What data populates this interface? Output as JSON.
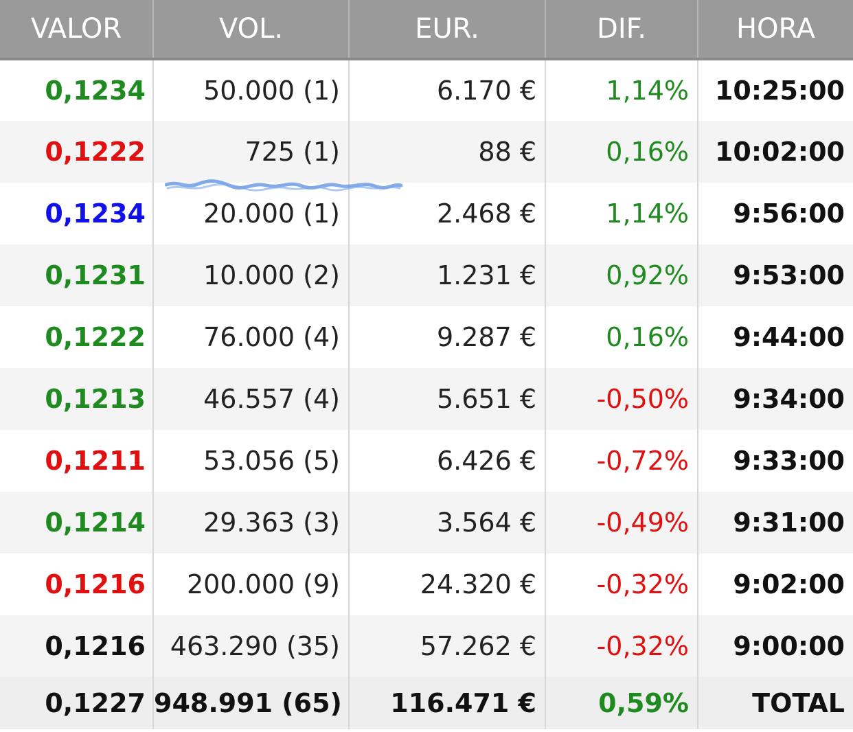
{
  "header": {
    "columns": [
      "VALOR",
      "VOL.",
      "EUR.",
      "DIF.",
      "HORA"
    ]
  },
  "rows": [
    {
      "valor": "0,1234",
      "valor_color": "green",
      "vol": "50.000 (1)",
      "eur": "6.170 €",
      "dif": "1,14%",
      "dif_color": "green",
      "hora": "10:25:00"
    },
    {
      "valor": "0,1222",
      "valor_color": "red",
      "vol": "725 (1)",
      "eur": "88 €",
      "dif": "0,16%",
      "dif_color": "green",
      "hora": "10:02:00"
    },
    {
      "valor": "0,1234",
      "valor_color": "blue",
      "vol": "20.000 (1)",
      "eur": "2.468 €",
      "dif": "1,14%",
      "dif_color": "green",
      "hora": "9:56:00"
    },
    {
      "valor": "0,1231",
      "valor_color": "green",
      "vol": "10.000 (2)",
      "eur": "1.231 €",
      "dif": "0,92%",
      "dif_color": "green",
      "hora": "9:53:00"
    },
    {
      "valor": "0,1222",
      "valor_color": "green",
      "vol": "76.000 (4)",
      "eur": "9.287 €",
      "dif": "0,16%",
      "dif_color": "green",
      "hora": "9:44:00"
    },
    {
      "valor": "0,1213",
      "valor_color": "green",
      "vol": "46.557 (4)",
      "eur": "5.651 €",
      "dif": "-0,50%",
      "dif_color": "red",
      "hora": "9:34:00"
    },
    {
      "valor": "0,1211",
      "valor_color": "red",
      "vol": "53.056 (5)",
      "eur": "6.426 €",
      "dif": "-0,72%",
      "dif_color": "red",
      "hora": "9:33:00"
    },
    {
      "valor": "0,1214",
      "valor_color": "green",
      "vol": "29.363 (3)",
      "eur": "3.564 €",
      "dif": "-0,49%",
      "dif_color": "red",
      "hora": "9:31:00"
    },
    {
      "valor": "0,1216",
      "valor_color": "red",
      "vol": "200.000 (9)",
      "eur": "24.320 €",
      "dif": "-0,32%",
      "dif_color": "red",
      "hora": "9:02:00"
    },
    {
      "valor": "0,1216",
      "valor_color": "black",
      "vol": "463.290 (35)",
      "eur": "57.262 €",
      "dif": "-0,32%",
      "dif_color": "red",
      "hora": "9:00:00"
    }
  ],
  "total": {
    "valor": "0,1227",
    "vol": "948.991 (65)",
    "eur": "116.471 €",
    "dif": "0,59%",
    "dif_color": "green",
    "hora": "TOTAL"
  },
  "colors": {
    "header_bg": "#9a9a9a",
    "green": "#1f8a1f",
    "red": "#e01010",
    "blue": "#1010e8",
    "scribble": "#5b8fe0"
  }
}
